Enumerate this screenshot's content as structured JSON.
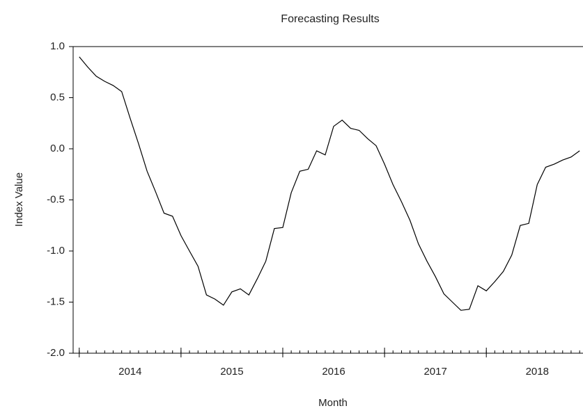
{
  "chart_data": {
    "type": "line",
    "title": "Forecasting Results",
    "x_label": "Month",
    "y_label": "Index Value",
    "x": [
      2014,
      2014.083,
      2014.167,
      2014.25,
      2014.333,
      2014.417,
      2014.5,
      2014.583,
      2014.667,
      2014.75,
      2014.833,
      2014.917,
      2015,
      2015.083,
      2015.167,
      2015.25,
      2015.333,
      2015.417,
      2015.5,
      2015.583,
      2015.667,
      2015.75,
      2015.833,
      2015.917,
      2016,
      2016.083,
      2016.167,
      2016.25,
      2016.333,
      2016.417,
      2016.5,
      2016.583,
      2016.667,
      2016.75,
      2016.833,
      2016.917,
      2017,
      2017.083,
      2017.167,
      2017.25,
      2017.333,
      2017.417,
      2017.5,
      2017.583,
      2017.667,
      2017.75,
      2017.833,
      2017.917,
      2018,
      2018.083,
      2018.167,
      2018.25,
      2018.333,
      2018.417,
      2018.5,
      2018.583,
      2018.667,
      2018.75,
      2018.833,
      2018.917
    ],
    "series": [
      {
        "name": "Index Value",
        "color": "#000000",
        "values": [
          0.9,
          0.8,
          0.71,
          0.66,
          0.62,
          0.56,
          0.3,
          0.05,
          -0.22,
          -0.42,
          -0.63,
          -0.66,
          -0.85,
          -1.0,
          -1.15,
          -1.43,
          -1.47,
          -1.53,
          -1.4,
          -1.37,
          -1.43,
          -1.27,
          -1.1,
          -0.78,
          -0.77,
          -0.43,
          -0.22,
          -0.2,
          -0.02,
          -0.06,
          0.22,
          0.28,
          0.2,
          0.18,
          0.1,
          0.03,
          -0.15,
          -0.35,
          -0.52,
          -0.7,
          -0.93,
          -1.1,
          -1.25,
          -1.42,
          -1.5,
          -1.58,
          -1.57,
          -1.34,
          -1.39,
          -1.3,
          -1.2,
          -1.04,
          -0.75,
          -0.73,
          -0.35,
          -0.18,
          -0.15,
          -0.11,
          -0.08,
          -0.02
        ]
      }
    ],
    "xlim": [
      2013.94,
      2018.95
    ],
    "xticks": [
      {
        "value": 2014.5,
        "label": "2014"
      },
      {
        "value": 2015.5,
        "label": "2015"
      },
      {
        "value": 2016.5,
        "label": "2016"
      },
      {
        "value": 2017.5,
        "label": "2017"
      },
      {
        "value": 2018.5,
        "label": "2018"
      }
    ],
    "ylim": [
      -2.0,
      1.0
    ],
    "yticks": [
      {
        "value": 1.0,
        "label": "1.0"
      },
      {
        "value": 0.5,
        "label": "0.5"
      },
      {
        "value": 0.0,
        "label": "0.0"
      },
      {
        "value": -0.5,
        "label": "-0.5"
      },
      {
        "value": -1.0,
        "label": "-1.0"
      },
      {
        "value": -1.5,
        "label": "-1.5"
      },
      {
        "value": -2.0,
        "label": "-2.0"
      }
    ],
    "grid": false
  }
}
